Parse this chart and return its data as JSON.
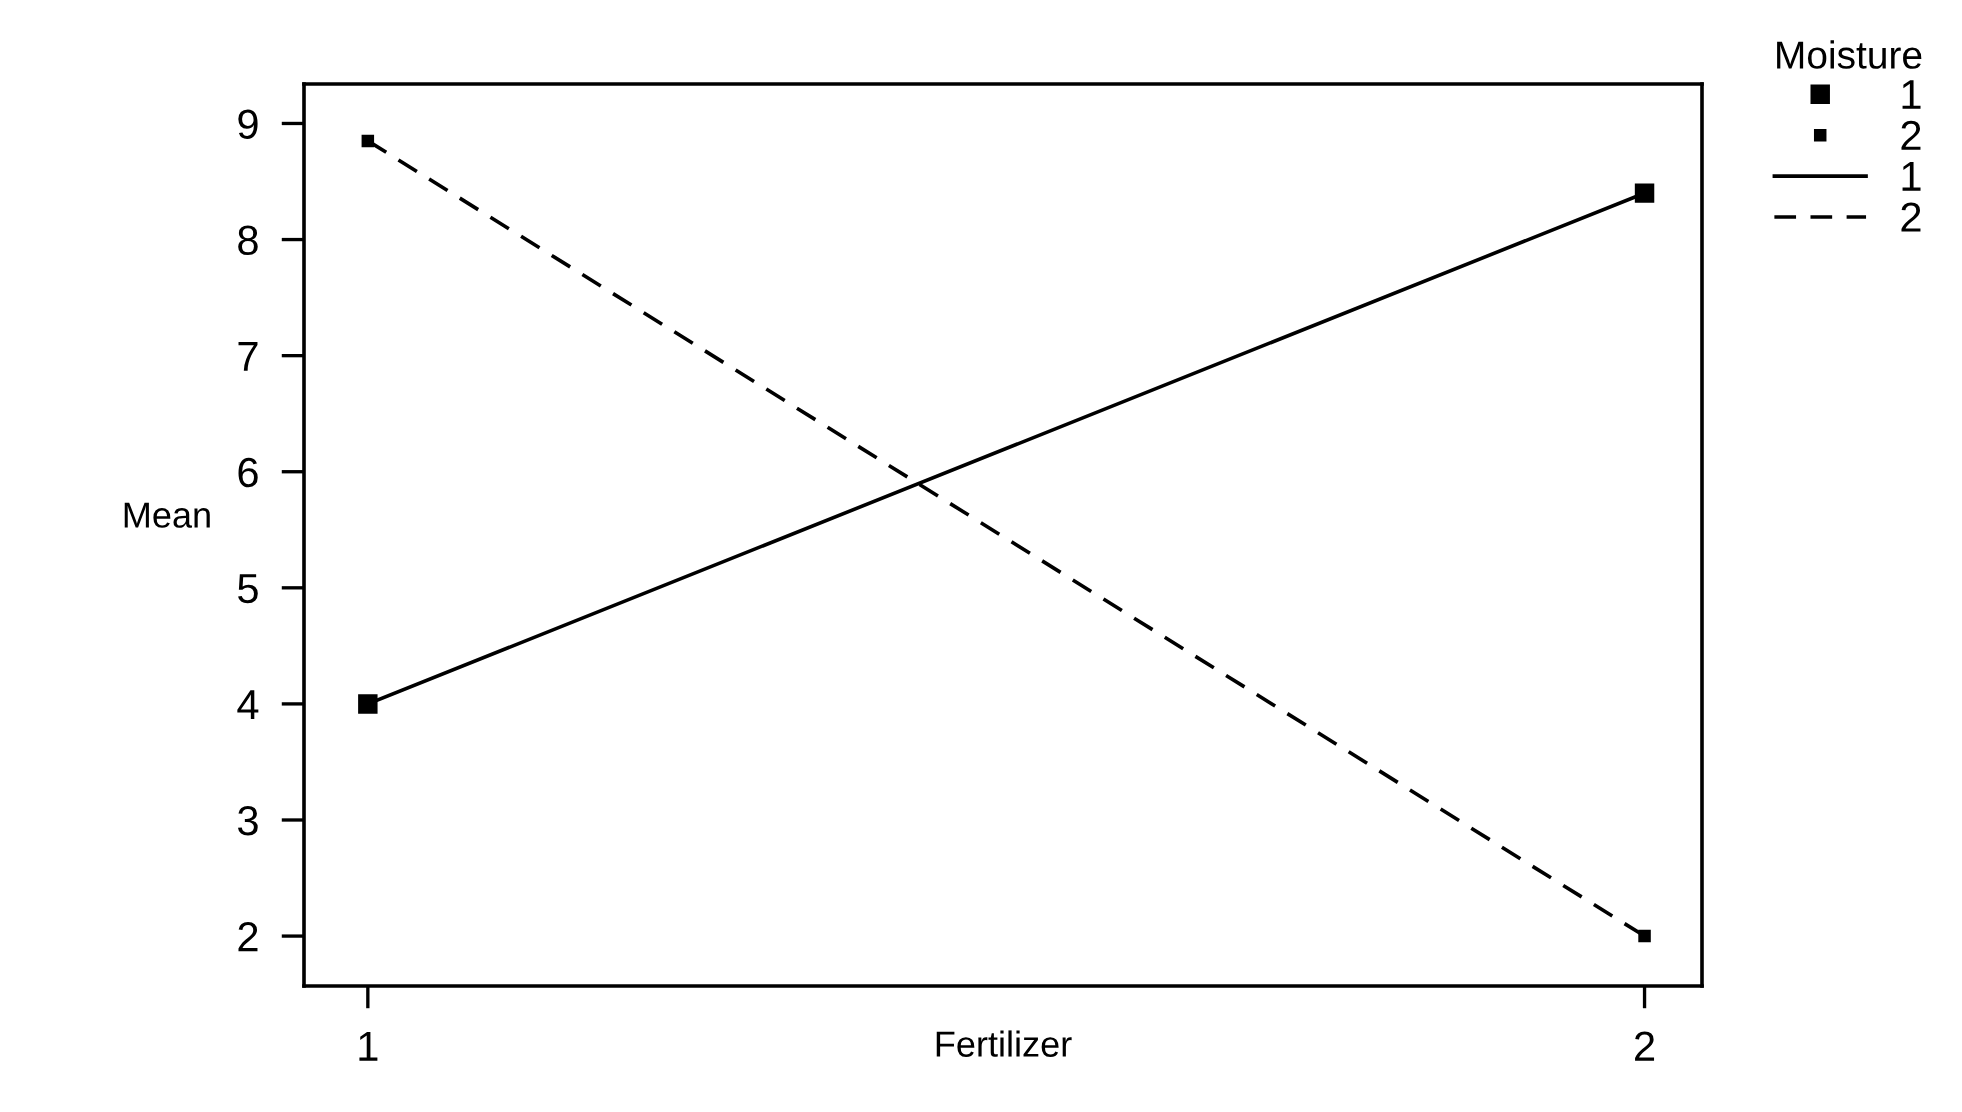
{
  "chart_data": {
    "type": "line",
    "xlabel": "Fertilizer",
    "ylabel": "Mean",
    "legend_title": "Moisture",
    "legend": "top right",
    "marker": "square",
    "grid": false,
    "x": [
      1,
      2
    ],
    "xlim": [
      0.95,
      2.045
    ],
    "xticks": [
      1,
      2
    ],
    "ylim": [
      1.57,
      9.34
    ],
    "yticks": [
      2,
      3,
      4,
      5,
      6,
      7,
      8,
      9
    ],
    "series": [
      {
        "name": "1",
        "color": "#000000",
        "values": [
          4.0,
          8.4
        ],
        "line_style": "solid"
      },
      {
        "name": "2",
        "color": "#000000",
        "values": [
          8.85,
          2.0
        ],
        "line_style": "dashed"
      }
    ]
  }
}
